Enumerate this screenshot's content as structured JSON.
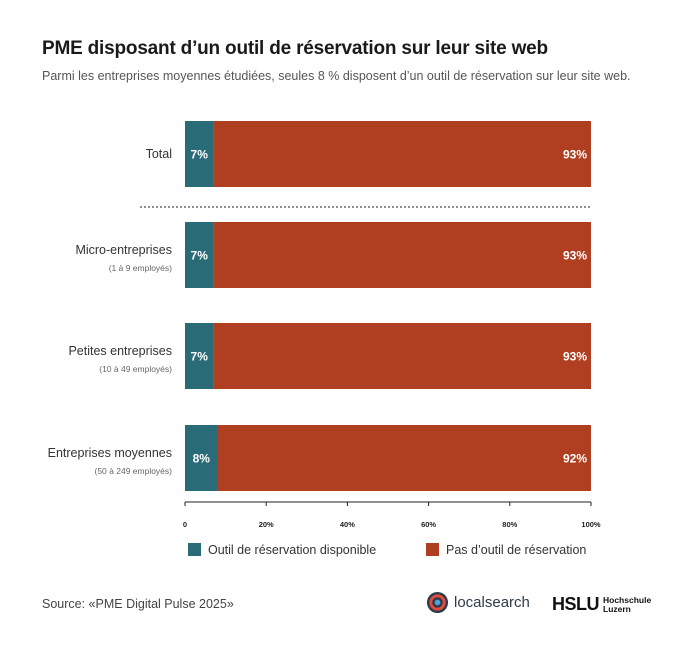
{
  "header": {
    "title": "PME disposant d’un outil de réservation sur leur site web",
    "subtitle": "Parmi les entreprises moyennes étudiées, seules 8 % disposent d’un outil de réservation sur leur site web."
  },
  "chart_data": {
    "type": "bar",
    "orientation": "horizontal",
    "stacked": true,
    "categories": [
      "Total",
      "Micro-entreprises",
      "Petites entreprises",
      "Entreprises moyennes"
    ],
    "category_sublabels": [
      "",
      "(1 à 9 employés)",
      "(10 à 49 employés)",
      "(50 à 249 employés)"
    ],
    "series": [
      {
        "name": "Outil de réservation disponible",
        "color": "#2a6b78",
        "values": [
          7,
          7,
          7,
          8
        ],
        "labels": [
          "7%",
          "7%",
          "7%",
          "8%"
        ]
      },
      {
        "name": "Pas d’outil de réservation",
        "color": "#b03f22",
        "values": [
          93,
          93,
          93,
          92
        ],
        "labels": [
          "93%",
          "93%",
          "93%",
          "92%"
        ]
      }
    ],
    "xlim": [
      0,
      100
    ],
    "xticks": [
      0,
      20,
      40,
      60,
      80,
      100
    ],
    "xtick_labels": [
      "0",
      "20%",
      "40%",
      "60%",
      "80%",
      "100%"
    ],
    "separator_after_first": true,
    "legend_position": "bottom"
  },
  "footer": {
    "source": "Source: «PME Digital Pulse 2025»",
    "logo_localsearch": "localsearch",
    "logo_hslu_main": "HSLU",
    "logo_hslu_line1": "Hochschule",
    "logo_hslu_line2": "Luzern"
  }
}
